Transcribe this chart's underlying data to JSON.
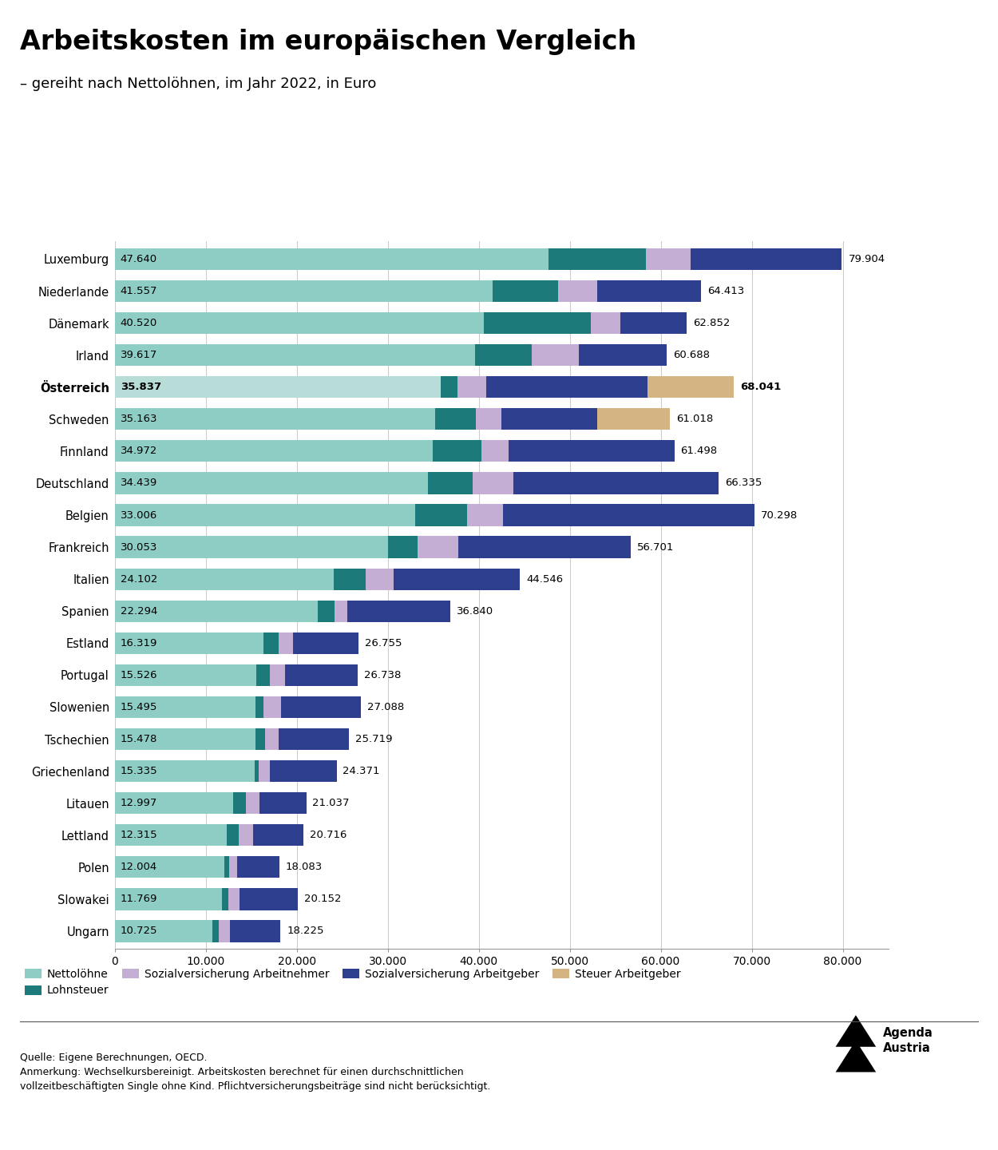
{
  "title": "Arbeitskosten im europäischen Vergleich",
  "subtitle": "– gereiht nach Nettolöhnen, im Jahr 2022, in Euro",
  "countries": [
    "Luxemburg",
    "Niederlande",
    "Dänemark",
    "Irland",
    "Österreich",
    "Schweden",
    "Finnland",
    "Deutschland",
    "Belgien",
    "Frankreich",
    "Italien",
    "Spanien",
    "Estland",
    "Portugal",
    "Slowenien",
    "Tschechien",
    "Griechenland",
    "Litauen",
    "Lettland",
    "Polen",
    "Slowakei",
    "Ungarn"
  ],
  "bold_countries": [
    "Österreich"
  ],
  "nettolohn": [
    47640,
    41557,
    40520,
    39617,
    35837,
    35163,
    34972,
    34439,
    33006,
    30053,
    24102,
    22294,
    16319,
    15526,
    15495,
    15478,
    15335,
    12997,
    12315,
    12004,
    11769,
    10725
  ],
  "total": [
    79904,
    64413,
    62852,
    60688,
    68041,
    61018,
    61498,
    66335,
    70298,
    56701,
    44546,
    36840,
    26755,
    26738,
    27088,
    25719,
    24371,
    21037,
    20716,
    18083,
    20152,
    18225
  ],
  "lohnsteuer": [
    10700,
    7200,
    11800,
    6200,
    1800,
    4500,
    5300,
    4900,
    5700,
    3200,
    3500,
    1900,
    1650,
    1500,
    850,
    1000,
    450,
    1400,
    1350,
    600,
    750,
    700
  ],
  "sv_arbeitnehmer": [
    4900,
    4300,
    3200,
    5200,
    3200,
    2800,
    3000,
    4500,
    4000,
    4500,
    3000,
    1400,
    1600,
    1700,
    1950,
    1500,
    1300,
    1500,
    1500,
    800,
    1200,
    1200
  ],
  "sv_arbeitgeber": [
    16664,
    11356,
    7332,
    9671,
    17704,
    10555,
    18226,
    22496,
    27592,
    18948,
    13944,
    11246,
    7186,
    8012,
    8793,
    7741,
    7286,
    5140,
    5551,
    4679,
    6433,
    5600
  ],
  "steuer_arbeitgeber": [
    0,
    0,
    0,
    0,
    9500,
    8000,
    0,
    0,
    0,
    0,
    0,
    0,
    0,
    0,
    0,
    0,
    0,
    0,
    0,
    0,
    0,
    0
  ],
  "colors": {
    "nettolohn": "#8ecdc4",
    "nettolohn_oe": "#b8ddd8",
    "lohnsteuer": "#1d7a7a",
    "sv_arbeitnehmer": "#c5aed4",
    "sv_arbeitgeber": "#2e3f8f",
    "steuer_arbeitgeber": "#d4b483"
  },
  "legend_labels": [
    "Nettolöhne",
    "Lohnsteuer",
    "Sozialversicherung Arbeitnehmer",
    "Sozialversicherung Arbeitgeber",
    "Steuer Arbeitgeber"
  ],
  "source_text": "Quelle: Eigene Berechnungen, OECD.\nAnmerkung: Wechselkursbereinigt. Arbeitskosten berechnet für einen durchschnittlichen\nvollzeitbeschäftigten Single ohne Kind. Pflichtversicherungsbeiträge sind nicht berücksichtigt.",
  "xlim": [
    0,
    85000
  ],
  "xticks": [
    0,
    10000,
    20000,
    30000,
    40000,
    50000,
    60000,
    70000,
    80000
  ]
}
